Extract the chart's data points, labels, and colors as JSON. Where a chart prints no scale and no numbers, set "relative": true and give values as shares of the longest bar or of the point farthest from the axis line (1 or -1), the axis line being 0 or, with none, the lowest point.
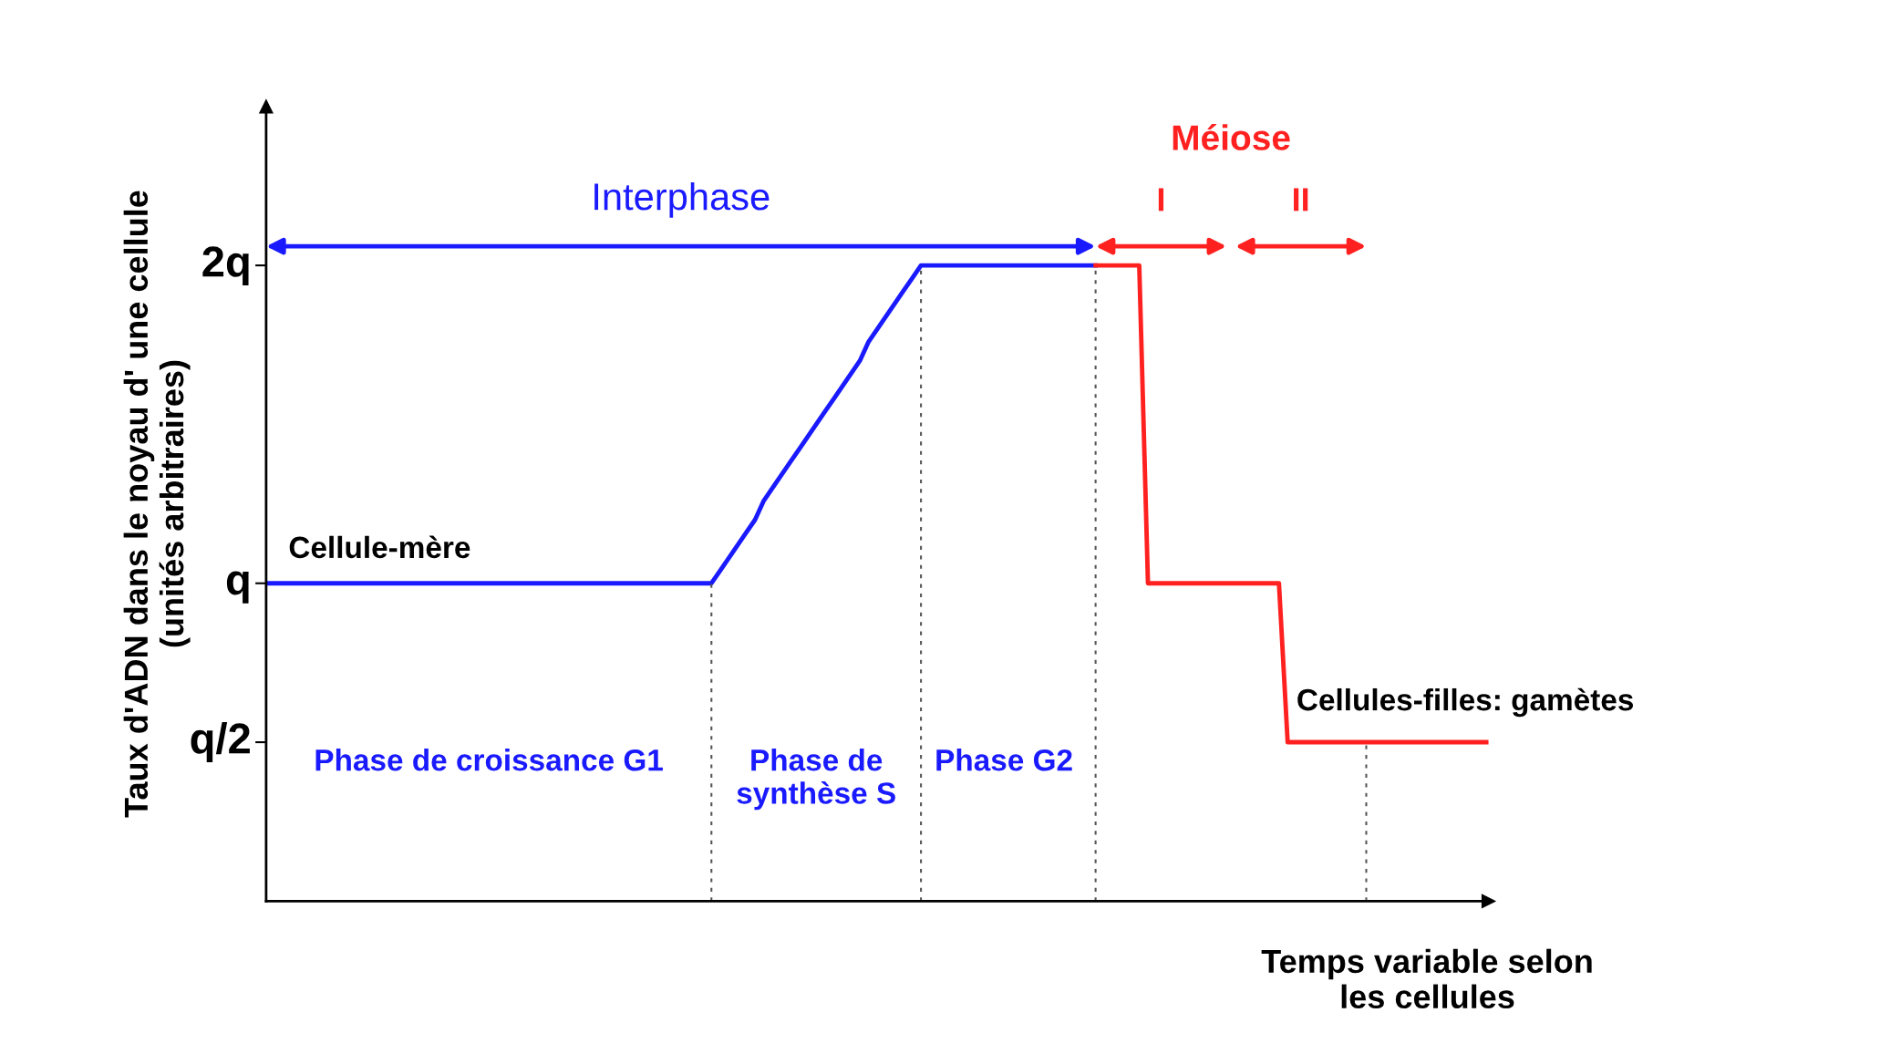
{
  "chart_data": {
    "type": "line",
    "relative": true,
    "ylabel": "Taux d'ADN dans le noyau d' une cellule\n(unités arbitraires)",
    "xlabel": "Temps variable selon\nles cellules",
    "categories": [
      null,
      null,
      null,
      null,
      null,
      null,
      null,
      null,
      null,
      null,
      null,
      null,
      null,
      null,
      null,
      null,
      null,
      null,
      null,
      null,
      null,
      null,
      null,
      null,
      null,
      null,
      null,
      null,
      null,
      null,
      null,
      null,
      null,
      null,
      null,
      null,
      null,
      null,
      null,
      null,
      null,
      null,
      null,
      null,
      null,
      null,
      null,
      null,
      null,
      null,
      null,
      null,
      null,
      null,
      null,
      null,
      null,
      null,
      null,
      null,
      null,
      null,
      null,
      null,
      null,
      null,
      null,
      null,
      null,
      null,
      null,
      null,
      null,
      null,
      null,
      null,
      null,
      null,
      null,
      null,
      null,
      null,
      null,
      null,
      null,
      null,
      null,
      null,
      null,
      null,
      null,
      null,
      null,
      null,
      null,
      null,
      null,
      null,
      null,
      null,
      null,
      null,
      null,
      null,
      null,
      null,
      null,
      null,
      null,
      null,
      null,
      null,
      null,
      null,
      null,
      null,
      null,
      null,
      null,
      null,
      null,
      null,
      null,
      null,
      null,
      null,
      null,
      null,
      null,
      null,
      null,
      null,
      null,
      null,
      null,
      null,
      null,
      null,
      null,
      null,
      null
    ],
    "series": [
      {
        "color": "#1a1aff",
        "values": [
          0.5,
          0.5,
          0.5,
          0.5,
          0.5,
          0.5,
          0.5,
          0.5,
          0.5,
          0.5,
          0.5,
          0.5,
          0.5,
          0.5,
          0.5,
          0.5,
          0.5,
          0.5,
          0.5,
          0.5,
          0.5,
          0.5,
          0.5,
          0.5,
          0.5,
          0.5,
          0.5,
          0.5,
          0.5,
          0.5,
          0.5,
          0.5,
          0.5,
          0.5,
          0.5,
          0.5,
          0.5,
          0.5,
          0.5,
          0.5,
          0.5,
          0.5,
          0.5,
          0.5,
          0.5,
          0.5,
          0.5,
          0.5,
          0.5,
          0.5,
          0.5,
          0.5,
          0.52,
          0.54,
          0.56,
          0.58,
          0.6,
          0.63,
          0.65,
          0.67,
          0.69,
          0.71,
          0.73,
          0.75,
          0.77,
          0.79,
          0.81,
          0.83,
          0.85,
          0.88,
          0.9,
          0.92,
          0.94,
          0.96,
          0.98,
          1,
          1,
          1,
          1,
          1,
          1,
          1,
          1,
          1,
          1,
          1,
          1,
          1,
          1,
          1,
          1,
          1,
          1,
          1,
          1,
          1,
          null,
          null,
          null,
          null,
          null,
          null,
          null,
          null,
          null,
          null,
          null,
          null,
          null,
          null,
          null,
          null,
          null,
          null,
          null,
          null,
          null,
          null,
          null,
          null,
          null,
          null,
          null,
          null,
          null,
          null,
          null,
          null,
          null,
          null,
          null,
          null,
          null,
          null,
          null,
          null,
          null,
          null,
          null,
          null,
          null
        ]
      },
      {
        "color": "#ff2020",
        "values": [
          null,
          null,
          null,
          null,
          null,
          null,
          null,
          null,
          null,
          null,
          null,
          null,
          null,
          null,
          null,
          null,
          null,
          null,
          null,
          null,
          null,
          null,
          null,
          null,
          null,
          null,
          null,
          null,
          null,
          null,
          null,
          null,
          null,
          null,
          null,
          null,
          null,
          null,
          null,
          null,
          null,
          null,
          null,
          null,
          null,
          null,
          null,
          null,
          null,
          null,
          null,
          null,
          null,
          null,
          null,
          null,
          null,
          null,
          null,
          null,
          null,
          null,
          null,
          null,
          null,
          null,
          null,
          null,
          null,
          null,
          null,
          null,
          null,
          null,
          null,
          null,
          null,
          null,
          null,
          null,
          null,
          null,
          null,
          null,
          null,
          null,
          null,
          null,
          null,
          null,
          null,
          null,
          null,
          null,
          null,
          1,
          1,
          1,
          1,
          1,
          1,
          0.5,
          0.5,
          0.5,
          0.5,
          0.5,
          0.5,
          0.5,
          0.5,
          0.5,
          0.5,
          0.5,
          0.5,
          0.5,
          0.5,
          0.5,
          0.5,
          0.25,
          0.25,
          0.25,
          0.25,
          0.25,
          0.25,
          0.25,
          0.25,
          0.25,
          0.25,
          0.25,
          0.25,
          0.25,
          0.25,
          0.25,
          0.25,
          0.25,
          0.25,
          0.25,
          0.25,
          0.25,
          0.25,
          0.25,
          0.25
        ]
      }
    ],
    "annotations": [
      "Interphase",
      "I",
      "II",
      "2q",
      "q",
      "q/2",
      "Méiose",
      "Cellule-mère",
      "Phase de croissance G1",
      "Phase de\nsynthèse S",
      "Phase G2",
      "Cellules-filles: gamètes"
    ]
  }
}
